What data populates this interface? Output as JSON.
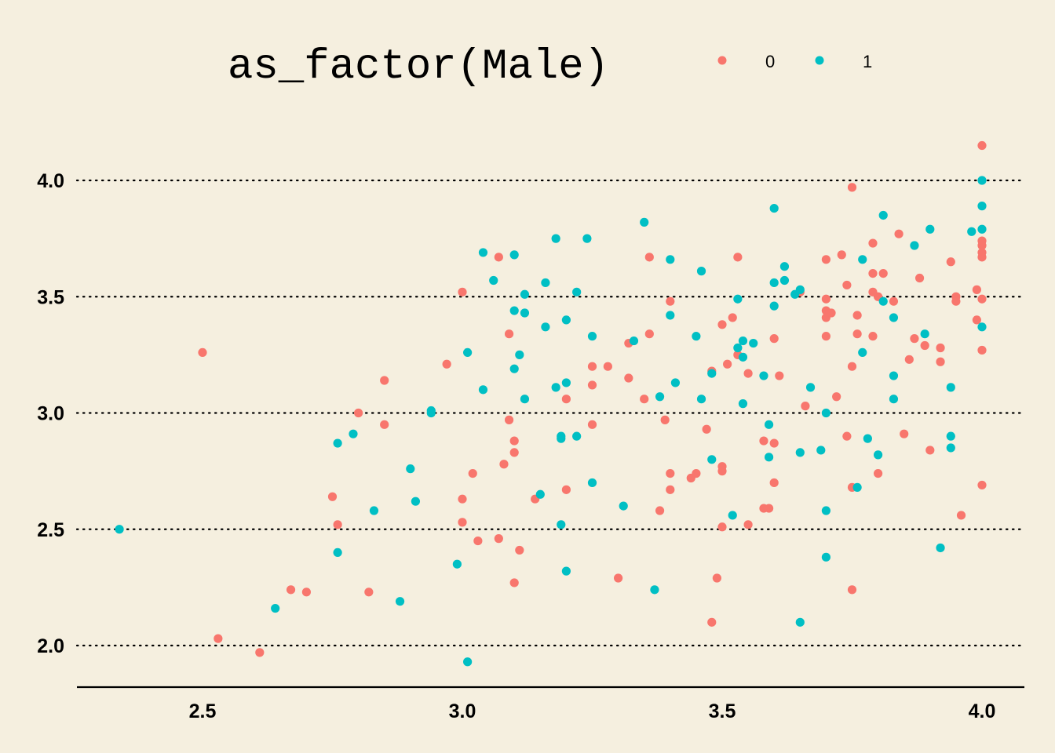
{
  "legend": {
    "title": "as_factor(Male)",
    "placement": "top",
    "entries": [
      {
        "label": "0",
        "color": "#F8766D"
      },
      {
        "label": "1",
        "color": "#00BFC4"
      }
    ]
  },
  "chart_data": {
    "type": "scatter",
    "title": "",
    "xlabel": "",
    "ylabel": "",
    "xlim": [
      2.27,
      4.08
    ],
    "ylim": [
      1.82,
      4.2
    ],
    "x_ticks": [
      "2.5",
      "3.0",
      "3.5",
      "4.0"
    ],
    "y_ticks": [
      "2.0",
      "2.5",
      "3.0",
      "3.5",
      "4.0"
    ],
    "grid": "horizontal dotted",
    "series": [
      {
        "name": "0",
        "color": "#F8766D",
        "points": [
          [
            2.5,
            3.26
          ],
          [
            2.53,
            2.03
          ],
          [
            2.61,
            1.97
          ],
          [
            2.67,
            2.24
          ],
          [
            2.7,
            2.23
          ],
          [
            2.75,
            2.64
          ],
          [
            2.76,
            2.52
          ],
          [
            2.8,
            3.0
          ],
          [
            2.82,
            2.23
          ],
          [
            2.85,
            3.14
          ],
          [
            2.85,
            2.95
          ],
          [
            2.97,
            3.21
          ],
          [
            3.0,
            3.52
          ],
          [
            3.0,
            2.63
          ],
          [
            3.0,
            2.53
          ],
          [
            3.02,
            2.74
          ],
          [
            3.03,
            2.45
          ],
          [
            3.07,
            3.67
          ],
          [
            3.07,
            2.46
          ],
          [
            3.08,
            2.78
          ],
          [
            3.09,
            3.34
          ],
          [
            3.09,
            2.97
          ],
          [
            3.1,
            2.88
          ],
          [
            3.1,
            2.83
          ],
          [
            3.1,
            2.27
          ],
          [
            3.11,
            2.41
          ],
          [
            3.14,
            2.63
          ],
          [
            3.2,
            3.06
          ],
          [
            3.2,
            2.67
          ],
          [
            3.25,
            3.2
          ],
          [
            3.25,
            3.12
          ],
          [
            3.25,
            2.95
          ],
          [
            3.28,
            3.2
          ],
          [
            3.3,
            2.29
          ],
          [
            3.32,
            3.3
          ],
          [
            3.32,
            3.15
          ],
          [
            3.35,
            3.06
          ],
          [
            3.36,
            3.67
          ],
          [
            3.36,
            3.34
          ],
          [
            3.38,
            2.58
          ],
          [
            3.39,
            2.97
          ],
          [
            3.4,
            3.48
          ],
          [
            3.4,
            2.74
          ],
          [
            3.4,
            2.67
          ],
          [
            3.44,
            2.72
          ],
          [
            3.45,
            2.74
          ],
          [
            3.47,
            2.93
          ],
          [
            3.48,
            3.18
          ],
          [
            3.48,
            2.1
          ],
          [
            3.49,
            2.29
          ],
          [
            3.5,
            3.38
          ],
          [
            3.5,
            2.77
          ],
          [
            3.5,
            2.75
          ],
          [
            3.5,
            2.51
          ],
          [
            3.51,
            3.21
          ],
          [
            3.52,
            3.41
          ],
          [
            3.53,
            3.67
          ],
          [
            3.53,
            3.25
          ],
          [
            3.55,
            3.17
          ],
          [
            3.55,
            2.52
          ],
          [
            3.58,
            2.88
          ],
          [
            3.58,
            2.59
          ],
          [
            3.59,
            2.59
          ],
          [
            3.6,
            3.32
          ],
          [
            3.6,
            2.87
          ],
          [
            3.6,
            2.7
          ],
          [
            3.61,
            3.16
          ],
          [
            3.65,
            3.52
          ],
          [
            3.66,
            3.03
          ],
          [
            3.7,
            3.66
          ],
          [
            3.7,
            3.49
          ],
          [
            3.7,
            3.44
          ],
          [
            3.7,
            3.41
          ],
          [
            3.7,
            3.33
          ],
          [
            3.71,
            3.43
          ],
          [
            3.72,
            3.07
          ],
          [
            3.73,
            3.68
          ],
          [
            3.74,
            3.55
          ],
          [
            3.74,
            2.9
          ],
          [
            3.75,
            3.97
          ],
          [
            3.75,
            3.2
          ],
          [
            3.75,
            2.68
          ],
          [
            3.75,
            2.24
          ],
          [
            3.76,
            3.42
          ],
          [
            3.76,
            3.34
          ],
          [
            3.79,
            3.73
          ],
          [
            3.79,
            3.6
          ],
          [
            3.79,
            3.52
          ],
          [
            3.79,
            3.33
          ],
          [
            3.8,
            3.5
          ],
          [
            3.8,
            2.74
          ],
          [
            3.81,
            3.6
          ],
          [
            3.83,
            3.48
          ],
          [
            3.84,
            3.77
          ],
          [
            3.85,
            2.91
          ],
          [
            3.86,
            3.23
          ],
          [
            3.87,
            3.32
          ],
          [
            3.88,
            3.58
          ],
          [
            3.89,
            3.29
          ],
          [
            3.9,
            2.84
          ],
          [
            3.92,
            3.28
          ],
          [
            3.92,
            3.22
          ],
          [
            3.94,
            3.65
          ],
          [
            3.95,
            3.5
          ],
          [
            3.95,
            3.48
          ],
          [
            3.96,
            2.56
          ],
          [
            3.99,
            3.53
          ],
          [
            3.99,
            3.4
          ],
          [
            4.0,
            4.15
          ],
          [
            4.0,
            3.74
          ],
          [
            4.0,
            3.72
          ],
          [
            4.0,
            3.69
          ],
          [
            4.0,
            3.67
          ],
          [
            4.0,
            3.49
          ],
          [
            4.0,
            3.27
          ],
          [
            4.0,
            2.69
          ]
        ]
      },
      {
        "name": "1",
        "color": "#00BFC4",
        "points": [
          [
            2.34,
            2.5
          ],
          [
            2.64,
            2.16
          ],
          [
            2.76,
            2.87
          ],
          [
            2.76,
            2.4
          ],
          [
            2.79,
            2.91
          ],
          [
            2.83,
            2.58
          ],
          [
            2.88,
            2.19
          ],
          [
            2.9,
            2.76
          ],
          [
            2.91,
            2.62
          ],
          [
            2.94,
            3.01
          ],
          [
            2.94,
            3.0
          ],
          [
            2.99,
            2.35
          ],
          [
            3.01,
            3.26
          ],
          [
            3.01,
            1.93
          ],
          [
            3.04,
            3.69
          ],
          [
            3.04,
            3.1
          ],
          [
            3.06,
            3.57
          ],
          [
            3.1,
            3.68
          ],
          [
            3.1,
            3.44
          ],
          [
            3.1,
            3.19
          ],
          [
            3.11,
            3.25
          ],
          [
            3.12,
            3.51
          ],
          [
            3.12,
            3.43
          ],
          [
            3.12,
            3.06
          ],
          [
            3.15,
            2.65
          ],
          [
            3.16,
            3.56
          ],
          [
            3.16,
            3.37
          ],
          [
            3.18,
            3.75
          ],
          [
            3.18,
            3.11
          ],
          [
            3.19,
            2.9
          ],
          [
            3.19,
            2.89
          ],
          [
            3.19,
            2.52
          ],
          [
            3.2,
            3.4
          ],
          [
            3.2,
            3.13
          ],
          [
            3.2,
            2.32
          ],
          [
            3.22,
            3.52
          ],
          [
            3.22,
            2.9
          ],
          [
            3.24,
            3.75
          ],
          [
            3.25,
            3.33
          ],
          [
            3.25,
            2.7
          ],
          [
            3.31,
            2.6
          ],
          [
            3.33,
            3.31
          ],
          [
            3.35,
            3.82
          ],
          [
            3.37,
            2.24
          ],
          [
            3.38,
            3.07
          ],
          [
            3.4,
            3.66
          ],
          [
            3.4,
            3.42
          ],
          [
            3.41,
            3.13
          ],
          [
            3.45,
            3.33
          ],
          [
            3.46,
            3.61
          ],
          [
            3.46,
            3.06
          ],
          [
            3.48,
            3.17
          ],
          [
            3.48,
            2.8
          ],
          [
            3.52,
            2.56
          ],
          [
            3.53,
            3.49
          ],
          [
            3.53,
            3.28
          ],
          [
            3.54,
            3.31
          ],
          [
            3.54,
            3.24
          ],
          [
            3.54,
            3.04
          ],
          [
            3.56,
            3.3
          ],
          [
            3.58,
            3.16
          ],
          [
            3.59,
            2.95
          ],
          [
            3.59,
            2.81
          ],
          [
            3.6,
            3.88
          ],
          [
            3.6,
            3.56
          ],
          [
            3.6,
            3.46
          ],
          [
            3.62,
            3.63
          ],
          [
            3.62,
            3.57
          ],
          [
            3.64,
            3.51
          ],
          [
            3.65,
            3.53
          ],
          [
            3.65,
            2.83
          ],
          [
            3.65,
            2.1
          ],
          [
            3.67,
            3.11
          ],
          [
            3.69,
            2.84
          ],
          [
            3.7,
            3.0
          ],
          [
            3.7,
            2.58
          ],
          [
            3.7,
            2.38
          ],
          [
            3.76,
            2.68
          ],
          [
            3.77,
            3.66
          ],
          [
            3.77,
            3.26
          ],
          [
            3.78,
            2.89
          ],
          [
            3.8,
            2.82
          ],
          [
            3.81,
            3.85
          ],
          [
            3.81,
            3.48
          ],
          [
            3.83,
            3.41
          ],
          [
            3.83,
            3.16
          ],
          [
            3.83,
            3.06
          ],
          [
            3.87,
            3.72
          ],
          [
            3.89,
            3.34
          ],
          [
            3.9,
            3.79
          ],
          [
            3.92,
            2.42
          ],
          [
            3.94,
            3.11
          ],
          [
            3.94,
            2.9
          ],
          [
            3.94,
            2.85
          ],
          [
            3.98,
            3.78
          ],
          [
            4.0,
            4.0
          ],
          [
            4.0,
            3.89
          ],
          [
            4.0,
            3.79
          ],
          [
            4.0,
            3.37
          ]
        ]
      }
    ]
  }
}
